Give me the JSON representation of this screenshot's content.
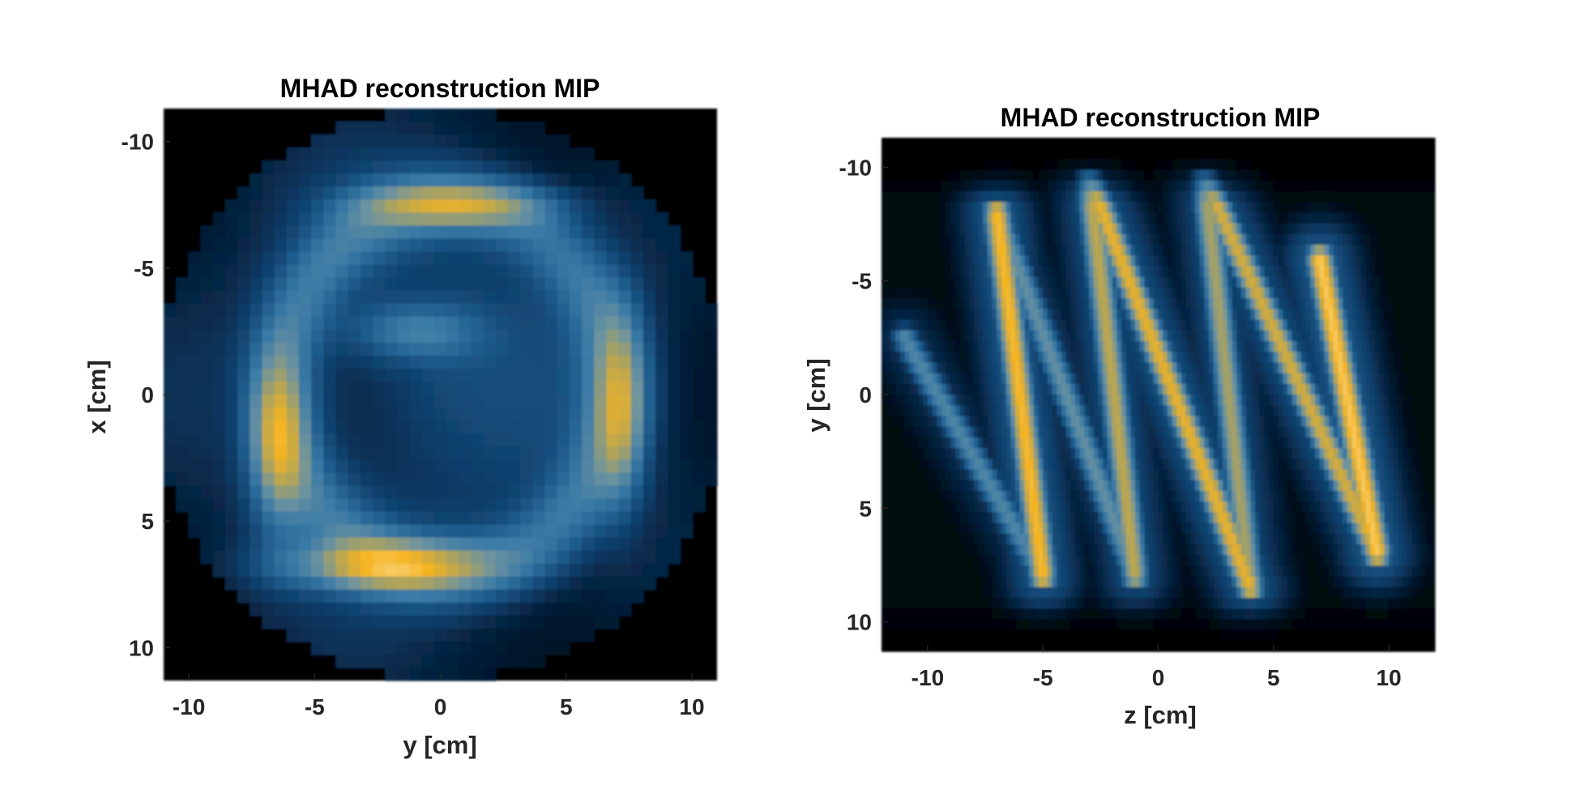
{
  "colors": {
    "colormap": [
      "#000000",
      "#021427",
      "#0b3b66",
      "#1f5c8c",
      "#3a7aa6",
      "#6c93a0",
      "#b5a555",
      "#f6b421",
      "#f8d27a",
      "#ffffff"
    ],
    "axis": "#262626",
    "background": "#ffffff"
  },
  "chart_data": [
    {
      "type": "heatmap",
      "title": "MHAD reconstruction MIP",
      "xlabel": "y [cm]",
      "ylabel": "x [cm]",
      "xlim": [
        -11,
        11
      ],
      "ylim": [
        -11.3,
        11.3
      ],
      "y_reversed": true,
      "xticks": [
        -10,
        -5,
        0,
        5,
        10
      ],
      "xtick_labels": [
        "-10",
        "-5",
        "0",
        "5",
        "10"
      ],
      "yticks": [
        -10,
        -5,
        0,
        5,
        10
      ],
      "ytick_labels": [
        "-10",
        "-5",
        "0",
        "5",
        "10"
      ],
      "grid": [
        44,
        45
      ],
      "colormap": "dark-blue to yellow (cividis-like)",
      "value_range": [
        0,
        1
      ],
      "field_of_view_radius_cm": 11.3,
      "structures": [
        {
          "kind": "ring",
          "center_y": 0.3,
          "center_x": -0.3,
          "radius_y": 6.6,
          "radius_x": 7.3,
          "width": 1.0,
          "intensity": 0.72
        },
        {
          "kind": "arc",
          "center_y": -2.2,
          "center_x": 6.8,
          "sigma_y": 3.0,
          "sigma_x": 0.7,
          "intensity": 1.0
        },
        {
          "kind": "arc",
          "center_y": -6.5,
          "center_x": 2.0,
          "sigma_y": 0.8,
          "sigma_x": 2.4,
          "intensity": 0.95
        },
        {
          "kind": "arc",
          "center_y": 0.7,
          "center_x": -7.5,
          "sigma_y": 2.6,
          "sigma_x": 0.6,
          "intensity": 0.82
        },
        {
          "kind": "arc",
          "center_y": 7.2,
          "center_x": 0.6,
          "sigma_y": 0.7,
          "sigma_x": 2.6,
          "intensity": 0.78
        },
        {
          "kind": "blob",
          "center_y": -1.0,
          "center_x": -2.5,
          "sigma_y": 1.8,
          "sigma_x": 0.8,
          "intensity": 0.5
        }
      ]
    },
    {
      "type": "heatmap",
      "title": "MHAD reconstruction MIP",
      "xlabel": "z [cm]",
      "ylabel": "y [cm]",
      "xlim": [
        -12,
        12
      ],
      "ylim": [
        -11.3,
        11.3
      ],
      "y_reversed": true,
      "xticks": [
        -10,
        -5,
        0,
        5,
        10
      ],
      "xtick_labels": [
        "-10",
        "-5",
        "0",
        "5",
        "10"
      ],
      "yticks": [
        -10,
        -5,
        0,
        5,
        10
      ],
      "ytick_labels": [
        "-10",
        "-5",
        "0",
        "5",
        "10"
      ],
      "grid": [
        48,
        120
      ],
      "colormap": "dark-blue to yellow (cividis-like)",
      "value_range": [
        0,
        1
      ],
      "strands": [
        {
          "z0": -11.0,
          "y0": -2.5,
          "z1": -5.0,
          "y1": 8.0,
          "intensity": 0.55
        },
        {
          "z0": -7.0,
          "y0": -8.0,
          "z1": -5.0,
          "y1": 8.0,
          "intensity": 0.95
        },
        {
          "z0": -7.0,
          "y0": -8.0,
          "z1": -1.0,
          "y1": 8.0,
          "intensity": 0.6
        },
        {
          "z0": -3.0,
          "y0": -9.5,
          "z1": -1.0,
          "y1": 8.0,
          "intensity": 0.8
        },
        {
          "z0": -3.0,
          "y0": -9.5,
          "z1": 4.0,
          "y1": 8.5,
          "intensity": 0.9
        },
        {
          "z0": 2.0,
          "y0": -9.5,
          "z1": 4.0,
          "y1": 8.5,
          "intensity": 0.75
        },
        {
          "z0": 2.0,
          "y0": -9.5,
          "z1": 9.5,
          "y1": 7.0,
          "intensity": 0.85
        },
        {
          "z0": 7.0,
          "y0": -6.0,
          "z1": 9.5,
          "y1": 7.0,
          "intensity": 1.0
        }
      ]
    }
  ]
}
